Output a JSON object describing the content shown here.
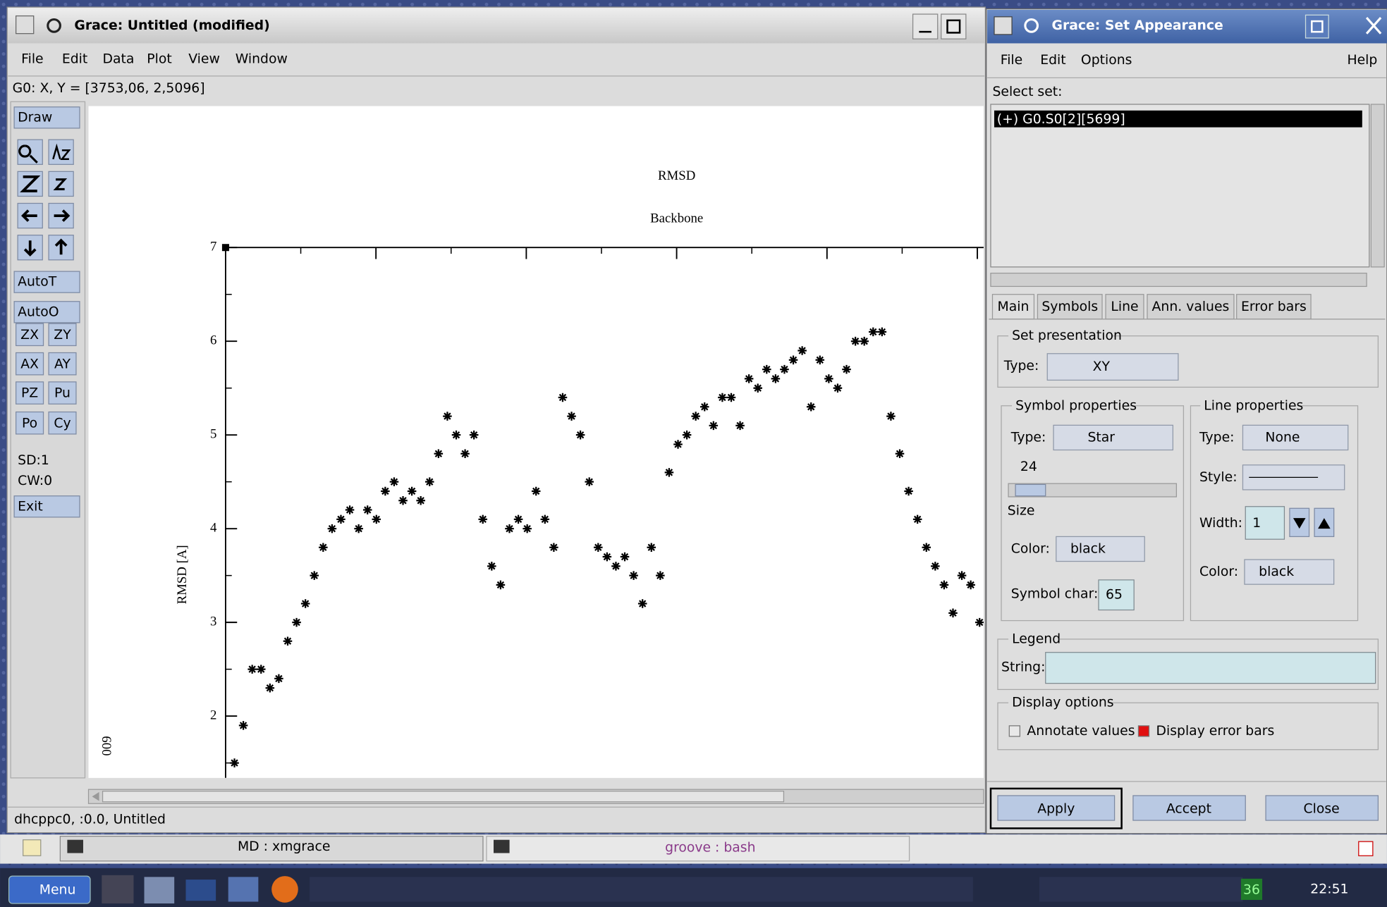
{
  "main_window": {
    "title": "Grace: Untitled (modified)",
    "menu": [
      "File",
      "Edit",
      "Data",
      "Plot",
      "View",
      "Window"
    ],
    "coords": "G0: X, Y = [3753,06, 2,5096]",
    "tools": {
      "draw": "Draw",
      "autot": "AutoT",
      "autoo": "AutoO",
      "buttons": [
        "ZX",
        "ZY",
        "AX",
        "AY",
        "PZ",
        "Pu",
        "Po",
        "Cy"
      ],
      "sd": "SD:1",
      "cw": "CW:0",
      "exit": "Exit"
    },
    "timestamp": "009",
    "status": "dhcppc0, :0.0, Untitled"
  },
  "chart_data": {
    "type": "scatter",
    "title": "RMSD",
    "subtitle": "Backbone",
    "ylabel": "RMSD [A]",
    "color": "#000000",
    "symbol": "star",
    "x": [
      59,
      118,
      177,
      236,
      295,
      354,
      413,
      472,
      531,
      590,
      649,
      708,
      767,
      826,
      885,
      944,
      1003,
      1062,
      1121,
      1180,
      1239,
      1298,
      1357,
      1416,
      1475,
      1534,
      1593,
      1652,
      1711,
      1770,
      1829,
      1888,
      1947,
      2006,
      2065,
      2124,
      2183,
      2242,
      2301,
      2360,
      2419,
      2478,
      2537,
      2596,
      2655,
      2714,
      2773,
      2832,
      2891,
      2950,
      3009,
      3068,
      3127,
      3186,
      3245,
      3304,
      3363,
      3422,
      3481,
      3540,
      3599,
      3658,
      3717,
      3776,
      3835,
      3894,
      3953,
      4012,
      4071,
      4130,
      4189,
      4248,
      4307,
      4366,
      4425,
      4484,
      4543,
      4602,
      4661,
      4720,
      4779,
      4838,
      4897,
      4956,
      5015
    ],
    "values": [
      1.5,
      1.9,
      2.5,
      2.5,
      2.3,
      2.4,
      2.8,
      3.0,
      3.2,
      3.5,
      3.8,
      4.0,
      4.1,
      4.2,
      4.0,
      4.2,
      4.1,
      4.4,
      4.5,
      4.3,
      4.4,
      4.3,
      4.5,
      4.8,
      5.2,
      5.0,
      4.8,
      5.0,
      4.1,
      3.6,
      3.4,
      4.0,
      4.1,
      4.0,
      4.4,
      4.1,
      3.8,
      5.4,
      5.2,
      5.0,
      4.5,
      3.8,
      3.7,
      3.6,
      3.7,
      3.5,
      3.2,
      3.8,
      3.5,
      4.6,
      4.9,
      5.0,
      5.2,
      5.3,
      5.1,
      5.4,
      5.4,
      5.1,
      5.6,
      5.5,
      5.7,
      5.6,
      5.7,
      5.8,
      5.9,
      5.3,
      5.8,
      5.6,
      5.5,
      5.7,
      6.0,
      6.0,
      6.1,
      6.1,
      5.2,
      4.8,
      4.4,
      4.1,
      3.8,
      3.6,
      3.4,
      3.1,
      3.5,
      3.4,
      3.0
    ],
    "xlim": [
      0,
      5030
    ],
    "xticks": [
      1000,
      2000,
      3000,
      4000,
      5000
    ],
    "x_minor_ticks": [
      500,
      1500,
      2500,
      3500,
      4500
    ],
    "ylim": [
      1.34,
      7
    ],
    "yticks": [
      2,
      3,
      4,
      5,
      6,
      7
    ],
    "y_minor_ticks": [
      1.5,
      2.5,
      3.5,
      4.5,
      5.5,
      6.5
    ]
  },
  "dialog": {
    "title": "Grace: Set Appearance",
    "menu": [
      "File",
      "Edit",
      "Options"
    ],
    "help": "Help",
    "select_label": "Select set:",
    "sets": [
      "(+) G0.S0[2][5699]"
    ],
    "tabs": [
      "Main",
      "Symbols",
      "Line",
      "Ann. values",
      "Error bars"
    ],
    "set_presentation": {
      "label": "Set presentation",
      "type_label": "Type:",
      "type": "XY"
    },
    "symbol": {
      "label": "Symbol properties",
      "type_label": "Type:",
      "type": "Star",
      "size": 24,
      "size_label": "Size",
      "color_label": "Color:",
      "color": "black",
      "char_label": "Symbol char:",
      "char": 65
    },
    "line": {
      "label": "Line properties",
      "type_label": "Type:",
      "type": "None",
      "style_label": "Style:",
      "width_label": "Width:",
      "width": 1,
      "color_label": "Color:",
      "color": "black"
    },
    "legend": {
      "label": "Legend",
      "string_label": "String:"
    },
    "display": {
      "label": "Display options",
      "annotate": "Annotate values",
      "error_bars": "Display error bars"
    },
    "buttons": [
      "Apply",
      "Accept",
      "Close"
    ]
  },
  "taskbar": {
    "tasks": [
      "MD : xmgrace",
      "groove : bash"
    ],
    "menu": "Menu",
    "clock": "22:51",
    "badge": "36"
  }
}
